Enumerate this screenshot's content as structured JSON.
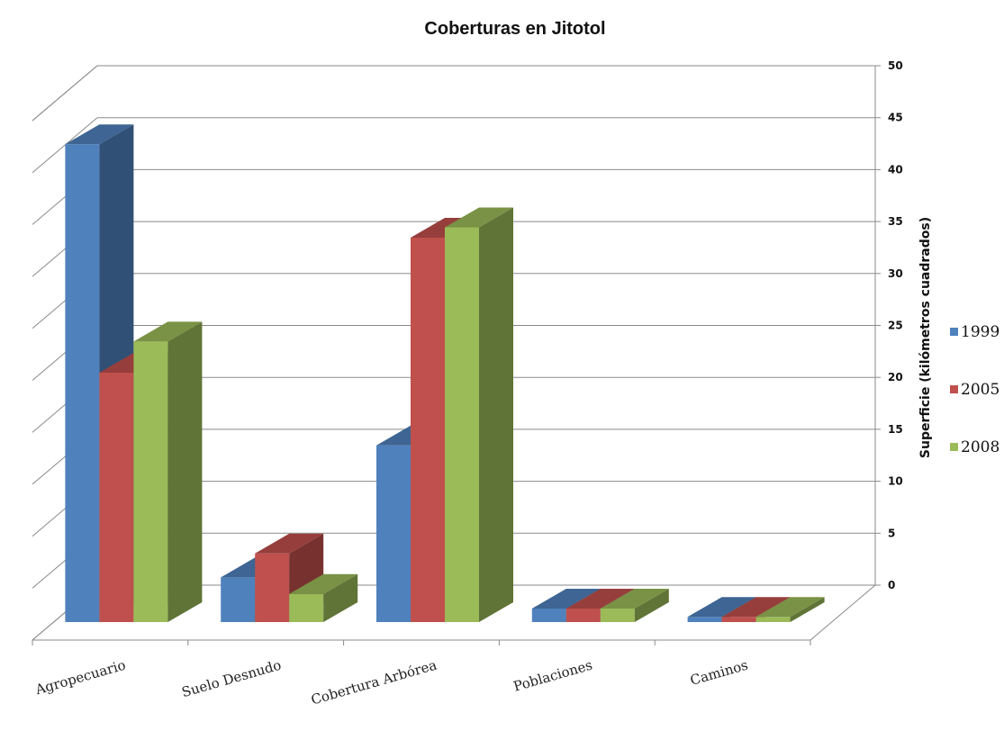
{
  "chart_data": {
    "type": "bar",
    "title": "Coberturas en Jitotol",
    "xlabel": "",
    "ylabel": "Superficie (kilómetros cuadrados)",
    "ylim": [
      0,
      50
    ],
    "yticks": [
      "0",
      "5",
      "10",
      "15",
      "20",
      "25",
      "30",
      "35",
      "40",
      "45",
      "50"
    ],
    "categories": [
      "Agropecuario",
      "Suelo Desnudo",
      "Cobertura Arbórea",
      "Poblaciones",
      "Caminos"
    ],
    "series": [
      {
        "name": "1999",
        "color": "#4f81bd",
        "values": [
          46,
          4.3,
          17,
          1.3,
          0.5
        ]
      },
      {
        "name": "2005",
        "color": "#c0504d",
        "values": [
          24,
          6.6,
          37,
          1.3,
          0.5
        ]
      },
      {
        "name": "2008",
        "color": "#9bbb59",
        "values": [
          27,
          2.7,
          38,
          1.3,
          0.5
        ]
      }
    ],
    "grid": true,
    "legend": "right",
    "style": "3d-clustered-column"
  }
}
